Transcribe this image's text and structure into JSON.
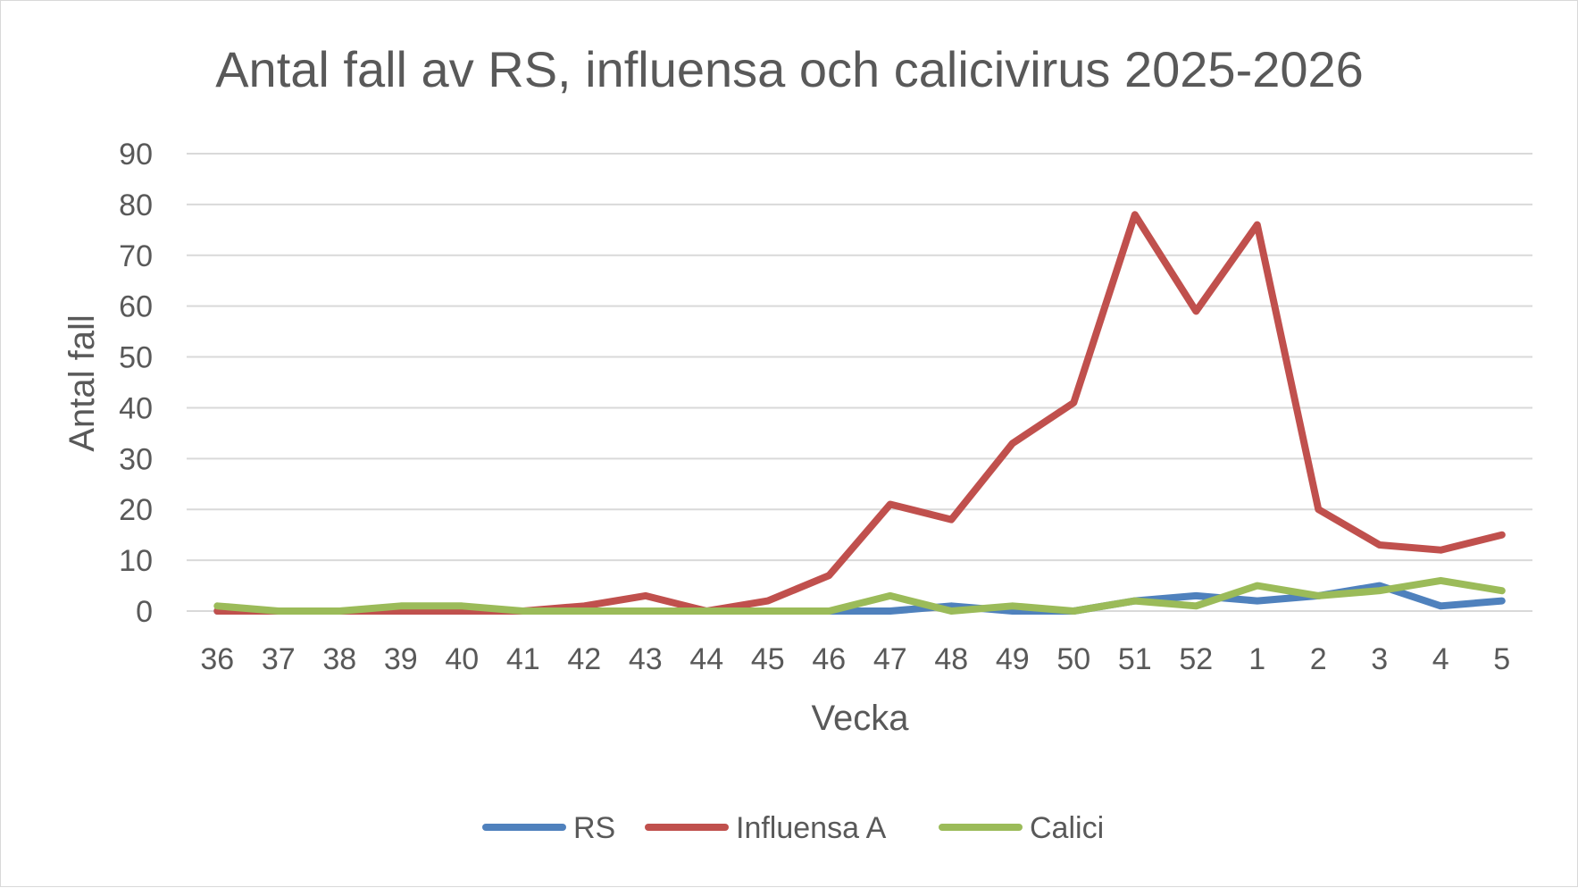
{
  "chart_data": {
    "type": "line",
    "title": "Antal fall av RS, influensa och calicivirus 2025-2026",
    "xlabel": "Vecka",
    "ylabel": "Antal fall",
    "ylim": [
      0,
      90
    ],
    "yticks": [
      "0",
      "10",
      "20",
      "30",
      "40",
      "50",
      "60",
      "70",
      "80",
      "90"
    ],
    "categories": [
      "36",
      "37",
      "38",
      "39",
      "40",
      "41",
      "42",
      "43",
      "44",
      "45",
      "46",
      "47",
      "48",
      "49",
      "50",
      "51",
      "52",
      "1",
      "2",
      "3",
      "4",
      "5"
    ],
    "grid": true,
    "legend_position": "bottom",
    "series": [
      {
        "name": "RS",
        "color": "#4f81bd",
        "values": [
          0,
          0,
          0,
          0,
          0,
          0,
          0,
          0,
          0,
          0,
          0,
          0,
          1,
          0,
          0,
          2,
          3,
          2,
          3,
          5,
          1,
          2
        ]
      },
      {
        "name": "Influensa A",
        "color": "#c0504d",
        "values": [
          0,
          0,
          0,
          0,
          0,
          0,
          1,
          3,
          0,
          2,
          7,
          21,
          18,
          33,
          41,
          78,
          59,
          76,
          20,
          13,
          12,
          15
        ]
      },
      {
        "name": "Calici",
        "color": "#9bbb59",
        "values": [
          1,
          0,
          0,
          1,
          1,
          0,
          0,
          0,
          0,
          0,
          0,
          3,
          0,
          1,
          0,
          2,
          1,
          5,
          3,
          4,
          6,
          4
        ]
      }
    ]
  }
}
